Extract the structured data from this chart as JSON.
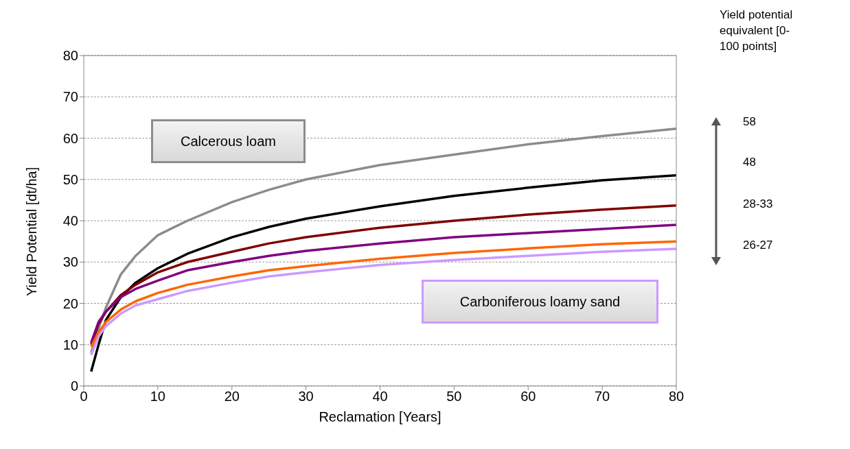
{
  "chart_data": {
    "type": "line",
    "xlabel": "Reclamation [Years]",
    "ylabel": "Yield Potential [dt/ha]",
    "xlim": [
      0,
      80
    ],
    "xticks": [
      0,
      10,
      20,
      30,
      40,
      50,
      60,
      70,
      80
    ],
    "ylim": [
      0,
      80
    ],
    "yticks": [
      0,
      10,
      20,
      30,
      40,
      50,
      60,
      70,
      80
    ],
    "grid": "y",
    "x": [
      1,
      2,
      3,
      5,
      7,
      10,
      14,
      20,
      25,
      30,
      40,
      50,
      60,
      70,
      80
    ],
    "series": [
      {
        "color": "#8c8c8c",
        "values": [
          8,
          14,
          19,
          27,
          31.5,
          36.5,
          40,
          44.5,
          47.5,
          50,
          53.5,
          56,
          58.5,
          60.5,
          62.3
        ]
      },
      {
        "color": "#000000",
        "values": [
          3.5,
          10,
          16,
          21.5,
          25,
          28.5,
          32,
          36,
          38.5,
          40.5,
          43.5,
          46,
          48,
          49.8,
          51
        ]
      },
      {
        "color": "#7f0000",
        "values": [
          10,
          15,
          18,
          22,
          24.5,
          27.5,
          30,
          32.5,
          34.5,
          36,
          38.3,
          40,
          41.5,
          42.7,
          43.7
        ]
      },
      {
        "color": "#800080",
        "values": [
          10.5,
          15.5,
          18,
          21.5,
          23.5,
          25.5,
          28,
          30,
          31.5,
          32.7,
          34.5,
          36,
          37,
          38,
          39
        ]
      },
      {
        "color": "#ff6600",
        "values": [
          9.5,
          13,
          15.5,
          18.5,
          20.5,
          22.5,
          24.5,
          26.5,
          28,
          29,
          30.8,
          32.2,
          33.3,
          34.3,
          35
        ]
      },
      {
        "color": "#cc99ff",
        "values": [
          7.5,
          12,
          14.5,
          17.5,
          19.5,
          21,
          23,
          25,
          26.5,
          27.5,
          29.3,
          30.5,
          31.5,
          32.5,
          33.2
        ]
      }
    ],
    "annotations": [
      "Calcerous loam",
      "Carboniferous loamy sand",
      "Yield potential equivalent [0-100 points]",
      "58",
      "48",
      "28-33",
      "26-27"
    ]
  }
}
